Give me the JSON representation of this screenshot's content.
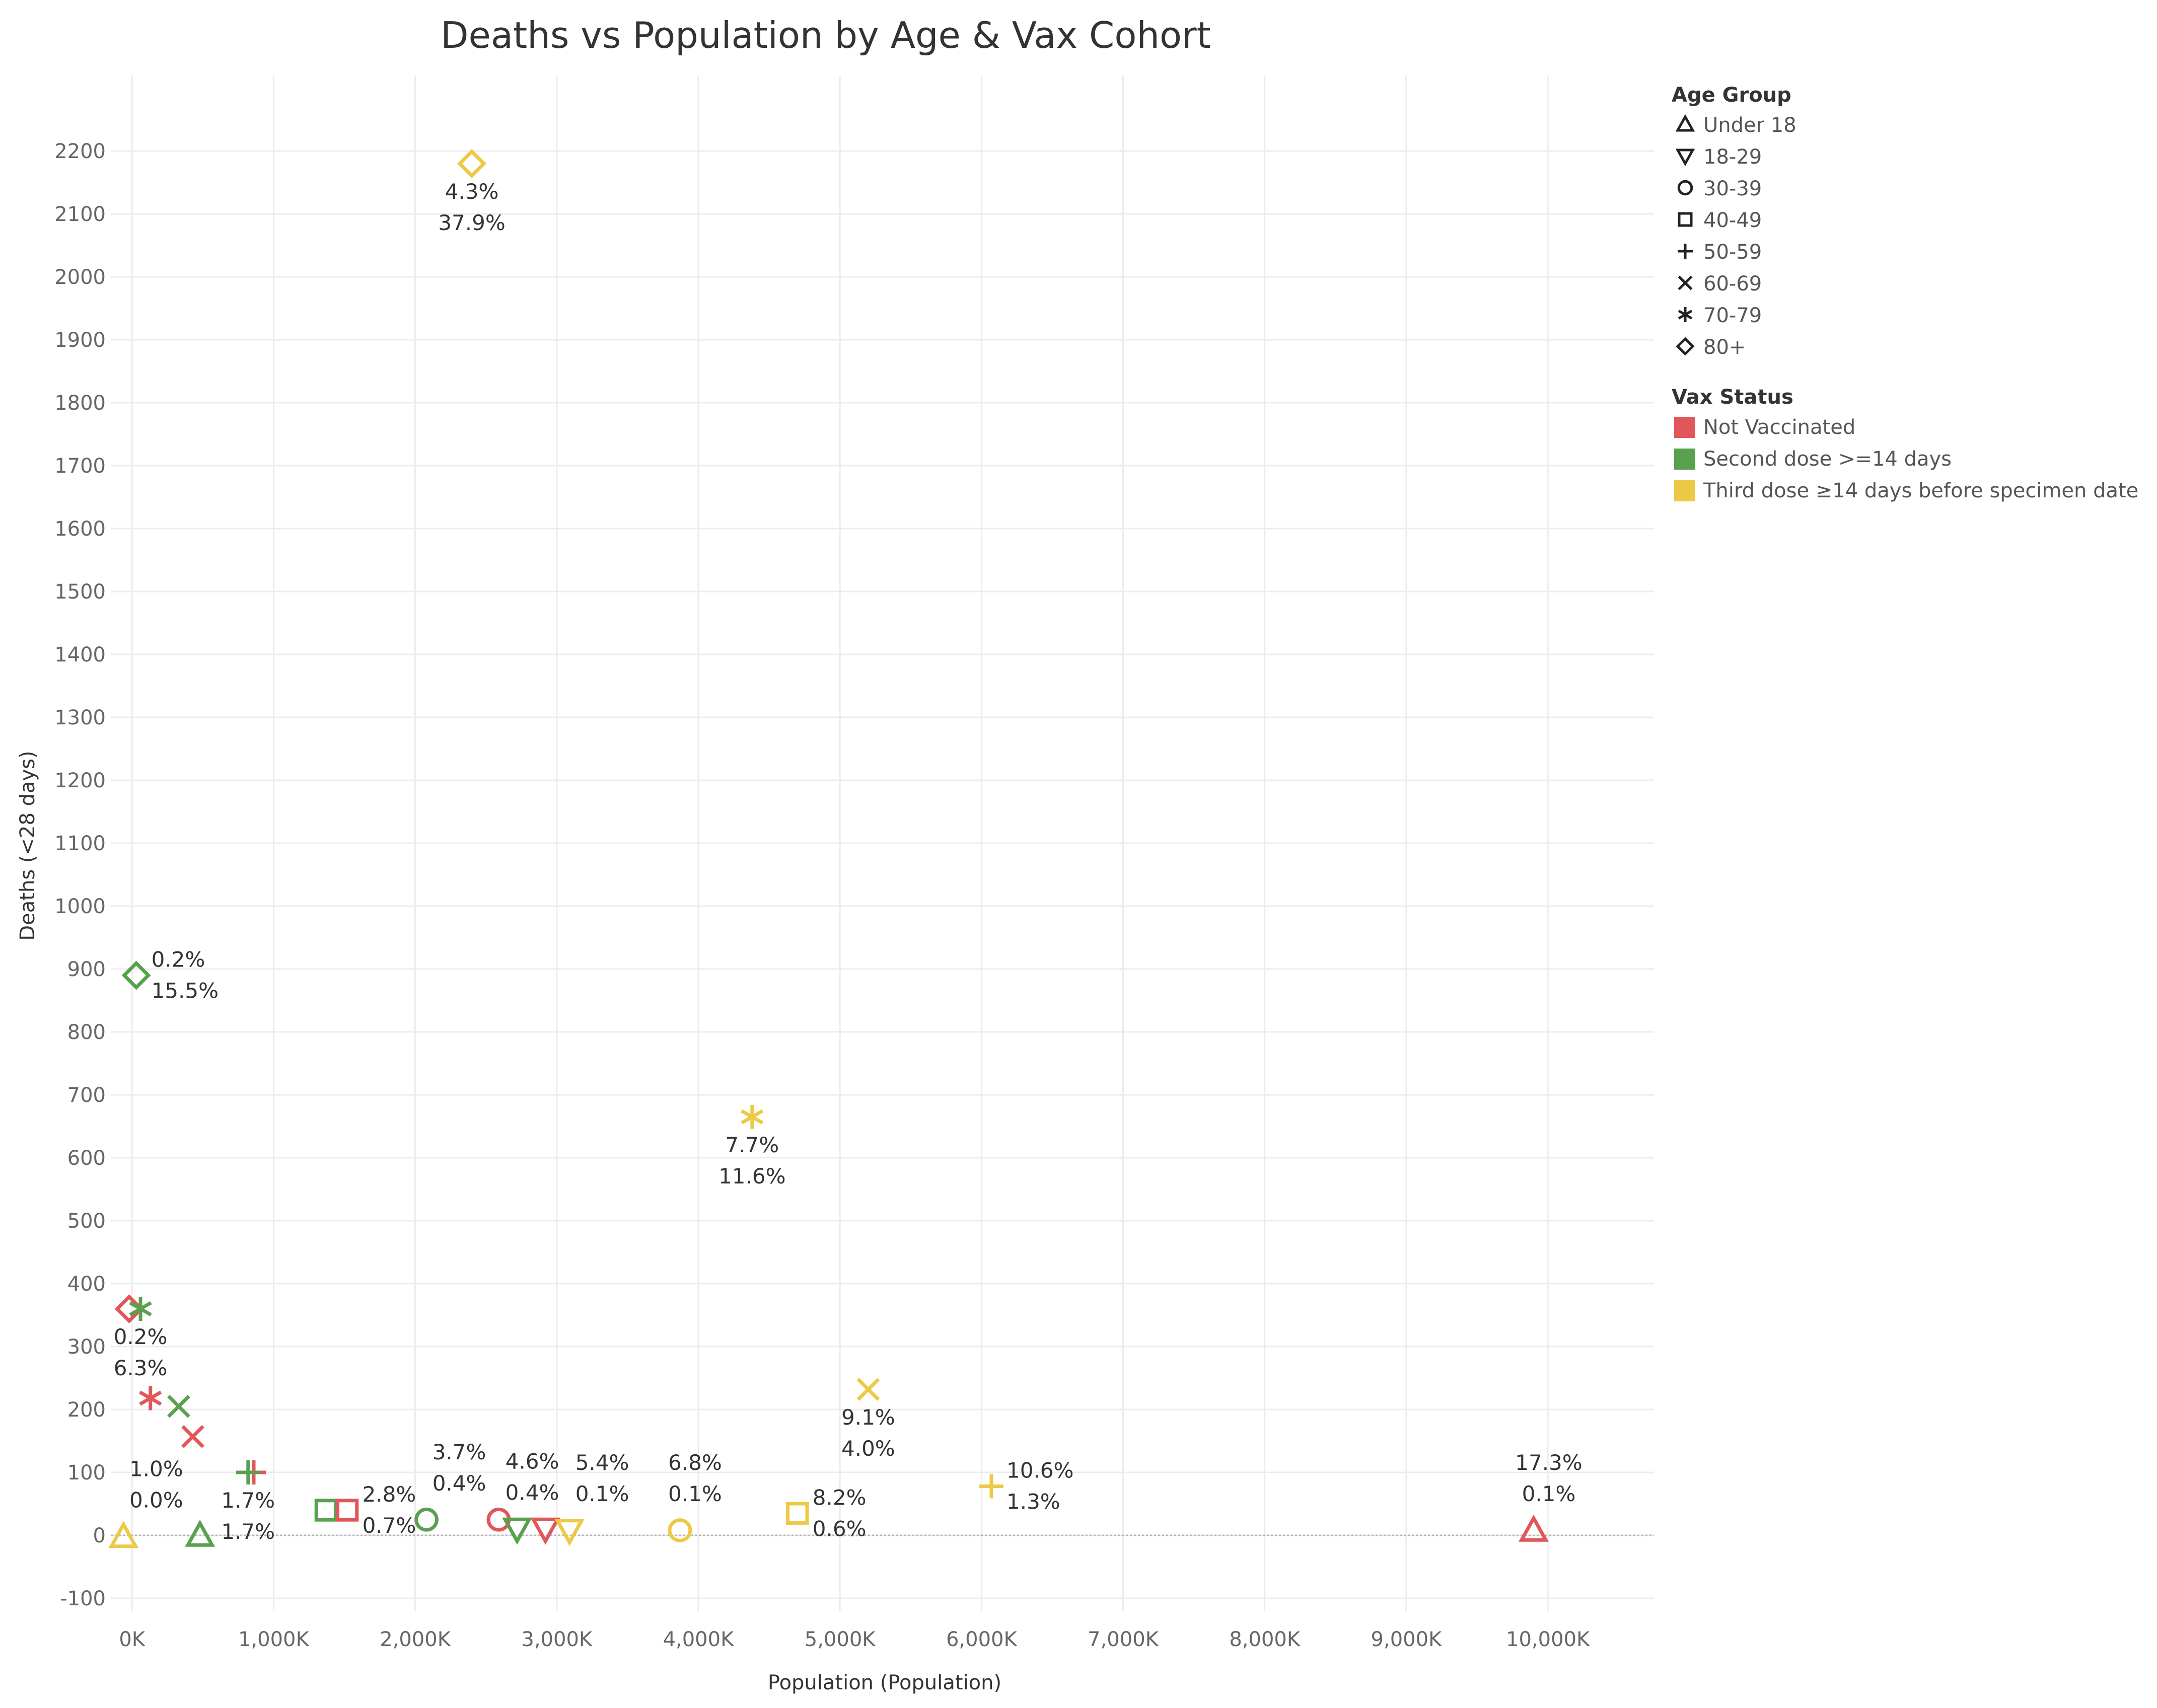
{
  "chart_data": {
    "type": "scatter",
    "title": "Deaths vs Population by Age & Vax Cohort",
    "xlabel": "Population (Population)",
    "ylabel": "Deaths (<28 days)",
    "xlim": [
      -150,
      10750
    ],
    "ylim": [
      -120,
      2320
    ],
    "x_ticks": [
      0,
      1000,
      2000,
      3000,
      4000,
      5000,
      6000,
      7000,
      8000,
      9000,
      10000
    ],
    "x_tick_labels": [
      "0K",
      "1,000K",
      "2,000K",
      "3,000K",
      "4,000K",
      "5,000K",
      "6,000K",
      "7,000K",
      "8,000K",
      "9,000K",
      "10,000K"
    ],
    "y_ticks": [
      -100,
      0,
      100,
      200,
      300,
      400,
      500,
      600,
      700,
      800,
      900,
      1000,
      1100,
      1200,
      1300,
      1400,
      1500,
      1600,
      1700,
      1800,
      1900,
      2000,
      2100,
      2200
    ],
    "y_tick_labels": [
      "-100",
      "0",
      "100",
      "200",
      "300",
      "400",
      "500",
      "600",
      "700",
      "800",
      "900",
      "1000",
      "1100",
      "1200",
      "1300",
      "1400",
      "1500",
      "1600",
      "1700",
      "1800",
      "1900",
      "2000",
      "2100",
      "2200"
    ],
    "grid": true,
    "legend_position": "right",
    "legends": {
      "age_group": {
        "title": "Age Group",
        "items": [
          {
            "label": "Under 18",
            "shape": "triangle-up"
          },
          {
            "label": "18-29",
            "shape": "triangle-down"
          },
          {
            "label": "30-39",
            "shape": "circle"
          },
          {
            "label": "40-49",
            "shape": "square"
          },
          {
            "label": "50-59",
            "shape": "plus"
          },
          {
            "label": "60-69",
            "shape": "cross"
          },
          {
            "label": "70-79",
            "shape": "asterisk"
          },
          {
            "label": "80+",
            "shape": "diamond"
          }
        ]
      },
      "vax_status": {
        "title": "Vax Status",
        "items": [
          {
            "label": "Not Vaccinated",
            "color": "#e15759"
          },
          {
            "label": "Second dose >=14 days",
            "color": "#59a14f"
          },
          {
            "label": "Third dose ≥14 days before specimen date",
            "color": "#edc948"
          }
        ]
      }
    },
    "points": [
      {
        "x": 2400,
        "y": 2180,
        "shape": "diamond",
        "color": "#edc948",
        "labels": [
          "4.3%",
          "37.9%"
        ],
        "label_pos": "below"
      },
      {
        "x": 30,
        "y": 890,
        "shape": "diamond",
        "color": "#59a14f",
        "labels": [
          "0.2%",
          "15.5%"
        ],
        "label_pos": "right"
      },
      {
        "x": 4380,
        "y": 665,
        "shape": "asterisk",
        "color": "#edc948",
        "labels": [
          "7.7%",
          "11.6%"
        ],
        "label_pos": "below"
      },
      {
        "x": -20,
        "y": 360,
        "shape": "diamond",
        "color": "#e15759",
        "labels": [],
        "label_pos": "below"
      },
      {
        "x": 60,
        "y": 360,
        "shape": "asterisk",
        "color": "#59a14f",
        "labels": [
          "0.2%",
          "6.3%"
        ],
        "label_pos": "below"
      },
      {
        "x": 130,
        "y": 218,
        "shape": "asterisk",
        "color": "#e15759",
        "labels": [],
        "label_pos": "below"
      },
      {
        "x": 330,
        "y": 205,
        "shape": "cross",
        "color": "#59a14f",
        "labels": [],
        "label_pos": "below"
      },
      {
        "x": 430,
        "y": 157,
        "shape": "cross",
        "color": "#e15759",
        "labels": [],
        "label_pos": "below"
      },
      {
        "x": 5200,
        "y": 232,
        "shape": "cross",
        "color": "#edc948",
        "labels": [
          "9.1%",
          "4.0%"
        ],
        "label_pos": "below"
      },
      {
        "x": 860,
        "y": 100,
        "shape": "plus",
        "color": "#e15759",
        "labels": [],
        "label_pos": "below"
      },
      {
        "x": 820,
        "y": 100,
        "shape": "plus",
        "color": "#59a14f",
        "labels": [
          "1.7%",
          "1.7%"
        ],
        "label_pos": "below"
      },
      {
        "x": -60,
        "y": -2,
        "shape": "triangle-up",
        "color": "#edc948",
        "labels": [
          "1.0%",
          "0.0%"
        ],
        "label_pos": "above-right"
      },
      {
        "x": 480,
        "y": 0,
        "shape": "triangle-up",
        "color": "#59a14f",
        "labels": [],
        "label_pos": "below"
      },
      {
        "x": 1370,
        "y": 40,
        "shape": "square",
        "color": "#59a14f",
        "labels": [],
        "label_pos": "right"
      },
      {
        "x": 1520,
        "y": 40,
        "shape": "square",
        "color": "#e15759",
        "labels": [
          "2.8%",
          "0.7%"
        ],
        "label_pos": "right"
      },
      {
        "x": 2080,
        "y": 25,
        "shape": "circle",
        "color": "#59a14f",
        "labels": [
          "3.7%",
          "0.4%"
        ],
        "label_pos": "above-right"
      },
      {
        "x": 2590,
        "y": 25,
        "shape": "circle",
        "color": "#e15759",
        "labels": [],
        "label_pos": "above"
      },
      {
        "x": 2720,
        "y": 10,
        "shape": "triangle-down",
        "color": "#59a14f",
        "labels": [
          "4.6%",
          "0.4%"
        ],
        "label_pos": "above"
      },
      {
        "x": 2920,
        "y": 10,
        "shape": "triangle-down",
        "color": "#e15759",
        "labels": [],
        "label_pos": "above"
      },
      {
        "x": 3090,
        "y": 8,
        "shape": "triangle-down",
        "color": "#edc948",
        "labels": [
          "5.4%",
          "0.1%"
        ],
        "label_pos": "above-right"
      },
      {
        "x": 3870,
        "y": 8,
        "shape": "circle",
        "color": "#edc948",
        "labels": [
          "6.8%",
          "0.1%"
        ],
        "label_pos": "above"
      },
      {
        "x": 4700,
        "y": 35,
        "shape": "square",
        "color": "#edc948",
        "labels": [
          "8.2%",
          "0.6%"
        ],
        "label_pos": "right"
      },
      {
        "x": 6070,
        "y": 78,
        "shape": "plus",
        "color": "#edc948",
        "labels": [
          "10.6%",
          "1.3%"
        ],
        "label_pos": "right"
      },
      {
        "x": 9900,
        "y": 8,
        "shape": "triangle-up",
        "color": "#e15759",
        "labels": [
          "17.3%",
          "0.1%"
        ],
        "label_pos": "above"
      }
    ]
  }
}
